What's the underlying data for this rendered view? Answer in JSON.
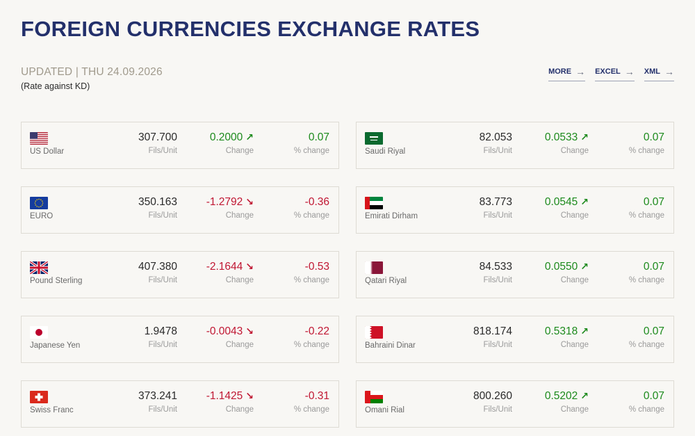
{
  "header": {
    "title": "FOREIGN CURRENCIES EXCHANGE RATES",
    "updated": "UPDATED | THU 24.09.2026",
    "rate_note": "(Rate against KD)"
  },
  "actions": [
    {
      "label": "MORE",
      "icon": "arrow-right-icon"
    },
    {
      "label": "EXCEL",
      "icon": "arrow-right-icon"
    },
    {
      "label": "XML",
      "icon": "arrow-right-icon"
    }
  ],
  "labels": {
    "unit": "Fils/Unit",
    "change": "Change",
    "pct_change": "% change"
  },
  "colors": {
    "title": "#23306b",
    "up": "#1c8a1c",
    "down": "#c01632"
  },
  "currencies": [
    {
      "name": "US Dollar",
      "flag": "us-flag-icon",
      "rate": "307.700",
      "change": "0.2000",
      "direction": "up",
      "pct": "0.07"
    },
    {
      "name": "Saudi Riyal",
      "flag": "saudi-flag-icon",
      "rate": "82.053",
      "change": "0.0533",
      "direction": "up",
      "pct": "0.07"
    },
    {
      "name": "EURO",
      "flag": "eu-flag-icon",
      "rate": "350.163",
      "change": "-1.2792",
      "direction": "down",
      "pct": "-0.36"
    },
    {
      "name": "Emirati Dirham",
      "flag": "uae-flag-icon",
      "rate": "83.773",
      "change": "0.0545",
      "direction": "up",
      "pct": "0.07"
    },
    {
      "name": "Pound Sterling",
      "flag": "uk-flag-icon",
      "rate": "407.380",
      "change": "-2.1644",
      "direction": "down",
      "pct": "-0.53"
    },
    {
      "name": "Qatari Riyal",
      "flag": "qatar-flag-icon",
      "rate": "84.533",
      "change": "0.0550",
      "direction": "up",
      "pct": "0.07"
    },
    {
      "name": "Japanese Yen",
      "flag": "japan-flag-icon",
      "rate": "1.9478",
      "change": "-0.0043",
      "direction": "down",
      "pct": "-0.22"
    },
    {
      "name": "Bahraini Dinar",
      "flag": "bahrain-flag-icon",
      "rate": "818.174",
      "change": "0.5318",
      "direction": "up",
      "pct": "0.07"
    },
    {
      "name": "Swiss Franc",
      "flag": "swiss-flag-icon",
      "rate": "373.241",
      "change": "-1.1425",
      "direction": "down",
      "pct": "-0.31"
    },
    {
      "name": "Omani Rial",
      "flag": "oman-flag-icon",
      "rate": "800.260",
      "change": "0.5202",
      "direction": "up",
      "pct": "0.07"
    }
  ]
}
